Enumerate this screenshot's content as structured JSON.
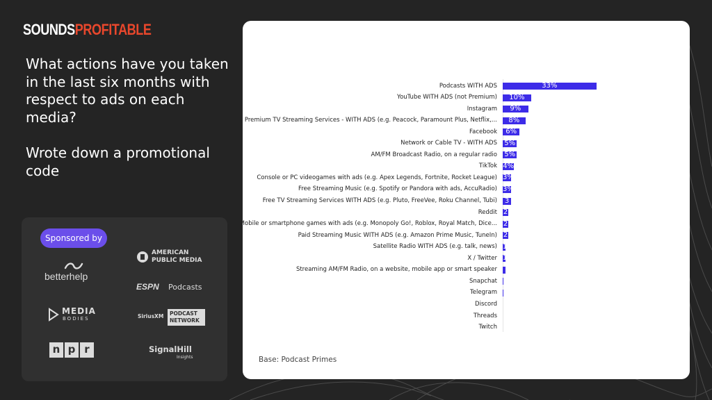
{
  "brand": {
    "name_part1": "SOUNDS",
    "name_part2": "PROFITABLE",
    "accent": "#e8472c"
  },
  "question": "What actions have you taken in the last six months with respect to ads on each media?",
  "subtitle": "Wrote down a promotional code",
  "sponsors": {
    "pill_label": "Sponsored by",
    "betterhelp": "betterhelp",
    "apm_line1": "AMERICAN",
    "apm_line2": "PUBLIC MEDIA",
    "espn_a": "ESPN",
    "espn_b": "Podcasts",
    "media_line1": "MEDIA",
    "media_line2": "BODIES",
    "sirius_a": "SiriusXM",
    "sirius_b1": "PODCAST",
    "sirius_b2": "NETWORK",
    "npr": [
      "n",
      "p",
      "r"
    ],
    "signal_a": "SignalHill",
    "signal_b": "Insights",
    "pill_color": "#6b4eea"
  },
  "footnote": "Base: Podcast Primes",
  "chart_data": {
    "type": "bar",
    "orientation": "horizontal",
    "bar_color": "#3d2ce8",
    "unit": "%",
    "categories": [
      "Podcasts WITH ADS",
      "YouTube WITH ADS (not Premium)",
      "Instagram",
      "Premium TV Streaming Services - WITH ADS (e.g. Peacock, Paramount Plus, Netflix,...",
      "Facebook",
      "Network or Cable TV - WITH ADS",
      "AM/FM Broadcast Radio, on a regular radio",
      "TikTok",
      "Console or PC videogames with ads (e.g. Apex Legends, Fortnite, Rocket League)",
      "Free Streaming Music (e.g. Spotify or Pandora with ads, AccuRadio)",
      "Free TV Streaming Services WITH ADS (e.g. Pluto, FreeVee, Roku Channel, Tubi)",
      "Reddit",
      "Mobile or smartphone games with ads (e.g. Monopoly Go!, Roblox, Royal Match, Dice...",
      "Paid Streaming Music WITH ADS (e.g. Amazon Prime Music, TuneIn)",
      "Satellite Radio WITH ADS (e.g. talk, news)",
      "X / Twitter",
      "Streaming AM/FM Radio, on a website, mobile app or smart speaker",
      "Snapchat",
      "Telegram",
      "Discord",
      "Threads",
      "Twitch"
    ],
    "values": [
      33,
      10,
      9,
      8,
      6,
      5,
      5,
      4,
      3,
      3,
      3,
      2,
      2,
      2,
      1,
      1,
      1,
      0.3,
      0.2,
      0,
      0,
      0
    ],
    "labels": [
      "33%",
      "10%",
      "9%",
      "8%",
      "6%",
      "5%",
      "5%",
      "4%",
      "3%",
      "3%",
      "3",
      "2",
      "2",
      "2",
      "1",
      "1",
      "",
      "",
      "",
      "",
      "",
      ""
    ]
  }
}
